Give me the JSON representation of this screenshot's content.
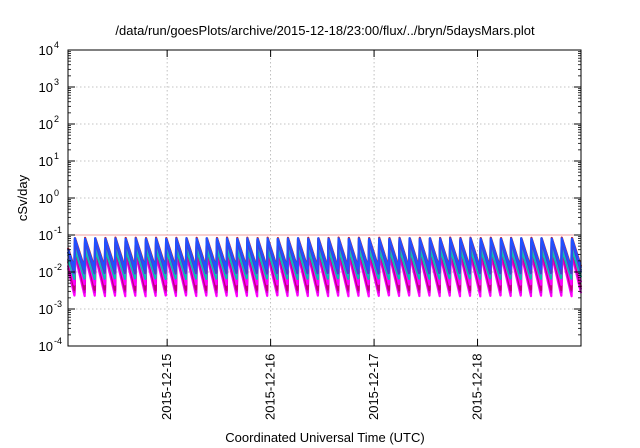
{
  "window": {
    "title": "/data/run/goesPlots/archive/2015-12-18/23:00/flux/../bryn/5daysMars.plot"
  },
  "chart_data": {
    "type": "line",
    "title": "/data/run/goesPlots/archive/2015-12-18/23:00/flux/../bryn/5daysMars.plot",
    "xlabel": "Coordinated Universal Time (UTC)",
    "ylabel": "cSv/day",
    "yscale": "log",
    "ylim_exponents": [
      -4,
      4
    ],
    "y_ticks": [
      {
        "base": "10",
        "exp": "-4"
      },
      {
        "base": "10",
        "exp": "-3"
      },
      {
        "base": "10",
        "exp": "-2"
      },
      {
        "base": "10",
        "exp": "-1"
      },
      {
        "base": "10",
        "exp": "0"
      },
      {
        "base": "10",
        "exp": "1"
      },
      {
        "base": "10",
        "exp": "2"
      },
      {
        "base": "10",
        "exp": "3"
      },
      {
        "base": "10",
        "exp": "4"
      }
    ],
    "x_range": [
      "2015-12-14 01:00",
      "2015-12-19 00:00"
    ],
    "x_ticks": [
      "2015-12-15",
      "2015-12-16",
      "2015-12-17",
      "2015-12-18"
    ],
    "grid": true,
    "reference_line": {
      "value": 0.1,
      "color": "#f0a0a0"
    },
    "sawtooth": {
      "cycles_per_day": 10.2,
      "phase_offset_cycles": 0.35
    },
    "series": [
      {
        "color": "#ff00ff",
        "peak": 0.028,
        "trough": 0.0022
      },
      {
        "color": "#d400d4",
        "peak": 0.032,
        "trough": 0.0028
      },
      {
        "color": "#c0007a",
        "peak": 0.045,
        "trough": 0.0032
      },
      {
        "color": "#ff00ff",
        "peak": 0.05,
        "trough": 0.0045
      },
      {
        "color": "#00c4b0",
        "peak": 0.04,
        "trough": 0.0065
      },
      {
        "color": "#2fa8c8",
        "peak": 0.055,
        "trough": 0.0085
      },
      {
        "color": "#1a6fd8",
        "peak": 0.065,
        "trough": 0.01
      },
      {
        "color": "#4a3fd0",
        "peak": 0.07,
        "trough": 0.009
      },
      {
        "color": "#e01010",
        "peak": 0.085,
        "trough": 0.013
      },
      {
        "color": "#2050ff",
        "peak": 0.082,
        "trough": 0.012
      }
    ]
  }
}
